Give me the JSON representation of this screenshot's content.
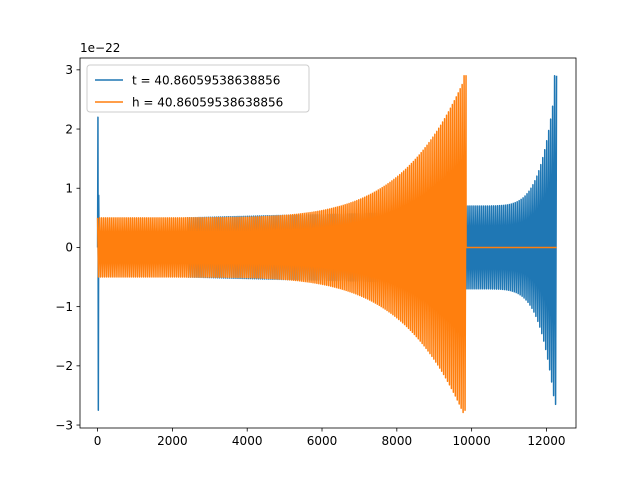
{
  "chart_data": {
    "type": "line",
    "title": "",
    "xlabel": "",
    "ylabel": "",
    "offset_text": "1e−22",
    "xlim": [
      -470,
      12790
    ],
    "ylim": [
      -3.05,
      3.2
    ],
    "xticks": [
      0,
      2000,
      4000,
      6000,
      8000,
      10000,
      12000
    ],
    "xtick_labels": [
      "0",
      "2000",
      "4000",
      "6000",
      "8000",
      "10000",
      "12000"
    ],
    "yticks": [
      -3,
      -2,
      -1,
      0,
      1,
      2,
      3
    ],
    "ytick_labels": [
      "−3",
      "−2",
      "−1",
      "0",
      "1",
      "2",
      "3"
    ],
    "grid": false,
    "legend_position": "upper-left",
    "series": [
      {
        "name": "t = 40.86059538638856",
        "color": "#1f77b4",
        "cycles": 235,
        "segments": [
          {
            "x_start": 0,
            "x_end": 40,
            "kind": "ringdown",
            "y_max": 2.2,
            "y_min": -2.75
          },
          {
            "x_start": 40,
            "x_end": 2400,
            "kind": "flat",
            "value": 0
          },
          {
            "x_start": 2400,
            "x_end": 9850,
            "kind": "oscillation",
            "amplitude_start": 0.5,
            "amplitude_end": 0.62
          },
          {
            "x_start": 9850,
            "x_end": 12270,
            "kind": "chirp",
            "amplitude_start": 0.7,
            "amplitude_end": 2.9,
            "y_max": 2.9,
            "y_min": -2.65
          }
        ]
      },
      {
        "name": "h = 40.86059538638856",
        "color": "#ff7f0e",
        "cycles": 235,
        "segments": [
          {
            "x_start": 0,
            "x_end": 9850,
            "kind": "chirp",
            "amplitude_start": 0.5,
            "amplitude_end": 2.9,
            "y_max": 2.9,
            "y_min": -2.75
          },
          {
            "x_start": 9850,
            "x_end": 12270,
            "kind": "flat",
            "value": 0
          }
        ]
      }
    ]
  }
}
